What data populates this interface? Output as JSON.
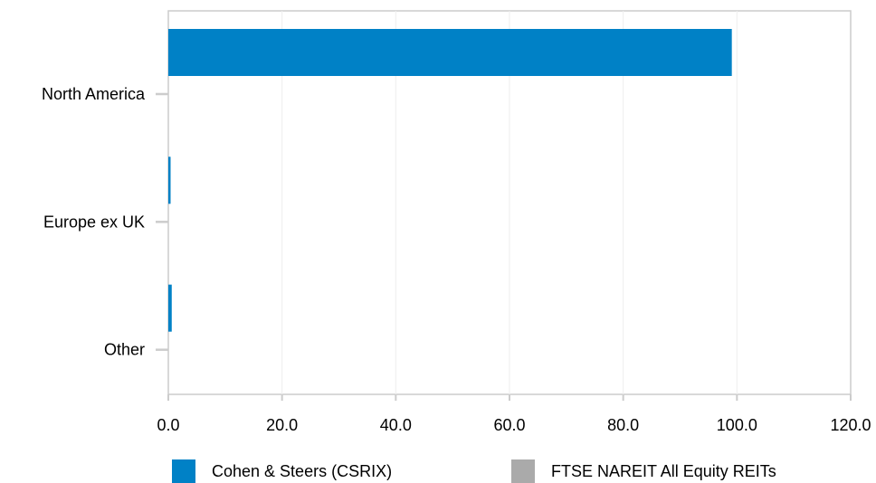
{
  "chart_data": {
    "type": "bar",
    "orientation": "horizontal",
    "categories": [
      "North America",
      "Europe ex UK",
      "Other"
    ],
    "series": [
      {
        "name": "Cohen & Steers (CSRIX)",
        "color": "#0081c6",
        "values": [
          99.1,
          0.3,
          0.6
        ]
      },
      {
        "name": "FTSE NAREIT All Equity REITs",
        "color": "#aaaaaa",
        "values": [
          0,
          0,
          0
        ]
      }
    ],
    "xlim": [
      0,
      120
    ],
    "xticks": [
      "0.0",
      "20.0",
      "40.0",
      "60.0",
      "80.0",
      "100.0",
      "120.0"
    ],
    "xtick_values": [
      0,
      20,
      40,
      60,
      80,
      100,
      120
    ],
    "grid": true,
    "legend_position": "bottom"
  }
}
